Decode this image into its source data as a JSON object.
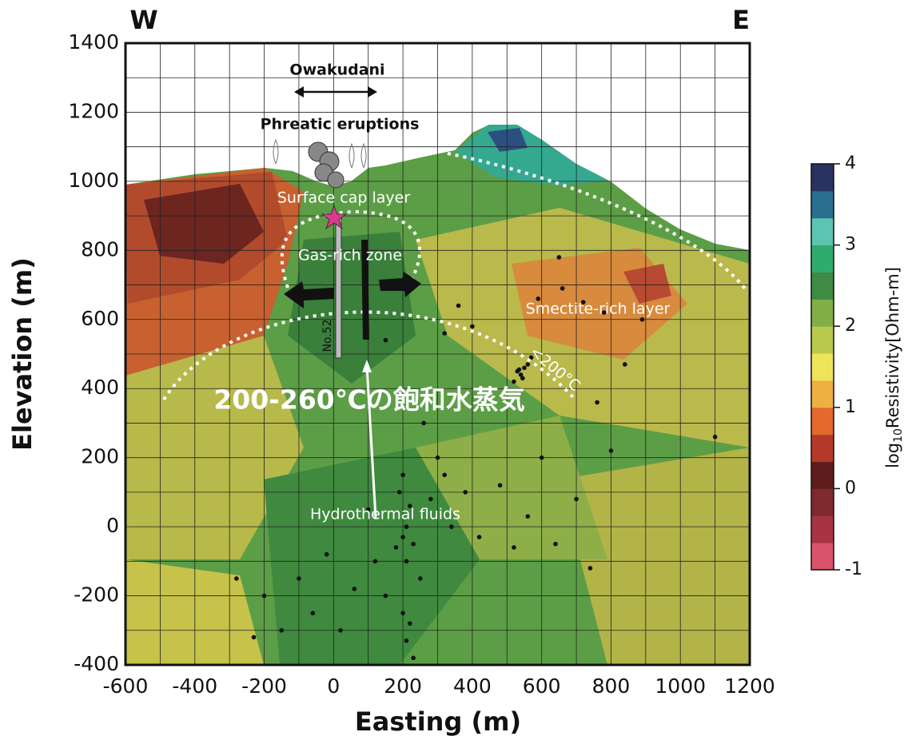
{
  "chart_data": {
    "type": "contour",
    "corner_left": "W",
    "corner_right": "E",
    "x_label": "Easting (m)",
    "y_label": "Elevation (m)",
    "xlim": [
      -600,
      1200
    ],
    "xticks": [
      -600,
      -400,
      -200,
      0,
      200,
      400,
      600,
      800,
      1000,
      1200
    ],
    "ylim": [
      -400,
      1400
    ],
    "yticks": [
      -400,
      -200,
      0,
      200,
      400,
      600,
      800,
      1000,
      1200,
      1400
    ],
    "grid": true,
    "annotations": {
      "owakudani": "Owakudani",
      "eruptions": "Phreatic eruptions",
      "cap": "Surface cap layer",
      "gas": "Gas-rich zone",
      "smectite": "Smectite-rich layer",
      "well": "No.52",
      "temp": "<200°C",
      "steam": "200-260℃の飽和水蒸気",
      "fluids": "Hydrothermal fluids"
    },
    "points": {
      "color": "#111111",
      "x": [
        530,
        540,
        550,
        560,
        545,
        520,
        570,
        535,
        360,
        400,
        590,
        650,
        660,
        720,
        780,
        840,
        890,
        760,
        800,
        1100,
        320,
        150,
        200,
        190,
        220,
        210,
        200,
        230,
        180,
        210,
        250,
        200,
        220,
        210,
        230,
        150,
        120,
        100,
        300,
        280,
        340,
        380,
        260,
        320,
        420,
        480,
        520,
        560,
        -100,
        -60,
        -150,
        -200,
        -280,
        -230,
        20,
        60,
        -20,
        640,
        700,
        740,
        600
      ],
      "y": [
        450,
        440,
        460,
        470,
        430,
        420,
        490,
        455,
        640,
        580,
        660,
        780,
        690,
        650,
        620,
        470,
        600,
        360,
        220,
        260,
        560,
        540,
        150,
        100,
        60,
        0,
        -30,
        -50,
        -60,
        -100,
        -150,
        -250,
        -280,
        -330,
        -380,
        -200,
        -100,
        50,
        200,
        80,
        0,
        100,
        300,
        150,
        -30,
        120,
        -60,
        30,
        -150,
        -250,
        -300,
        -200,
        -150,
        -320,
        -300,
        -180,
        -80,
        -50,
        80,
        -120,
        200
      ]
    },
    "colorbar": {
      "label": {
        "prefix": "log",
        "subscript": "10",
        "main": "Resistivity[Ohm-m]"
      },
      "lim": [
        -1,
        4
      ],
      "ticks": [
        -1,
        0,
        1,
        2,
        3,
        4
      ],
      "colors": [
        "#d9546a",
        "#a83442",
        "#7f2a2e",
        "#5e1d1c",
        "#b5392a",
        "#e3692f",
        "#eeb040",
        "#ede45a",
        "#b9c94c",
        "#82ae46",
        "#3f8a44",
        "#2fab6e",
        "#5cc4b0",
        "#2a6e90",
        "#2a3260"
      ]
    }
  }
}
